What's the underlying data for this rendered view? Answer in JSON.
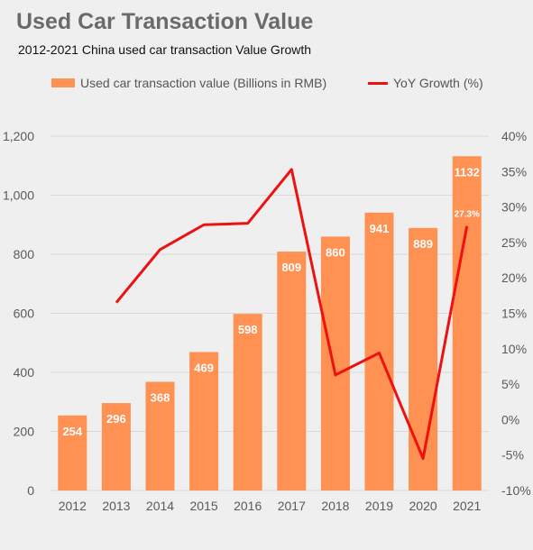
{
  "title": "Used Car Transaction Value",
  "subtitle": "2012-2021 China used car transaction Value Growth",
  "legend": {
    "bar_label": "Used car transaction value (Billions in RMB)",
    "line_label": "YoY Growth (%)"
  },
  "colors": {
    "bar": "#ff9152",
    "line": "#ee1111",
    "grid": "#d9d9d9"
  },
  "chart_data": {
    "type": "bar",
    "categories": [
      "2012",
      "2013",
      "2014",
      "2015",
      "2016",
      "2017",
      "2018",
      "2019",
      "2020",
      "2021"
    ],
    "series": [
      {
        "name": "Used car transaction value (Billions in RMB)",
        "type": "bar",
        "axis": "left",
        "values": [
          254,
          296,
          368,
          469,
          598,
          809,
          860,
          941,
          889,
          1132
        ]
      },
      {
        "name": "YoY Growth (%)",
        "type": "line",
        "axis": "right",
        "values": [
          null,
          16.5,
          24.0,
          27.5,
          27.7,
          35.3,
          6.3,
          9.4,
          -5.5,
          27.3
        ]
      }
    ],
    "ylim_left": [
      0,
      1200
    ],
    "yticks_left": [
      "0",
      "200",
      "400",
      "600",
      "800",
      "1,000",
      "1,200"
    ],
    "ylim_right": [
      -10,
      40
    ],
    "yticks_right": [
      "-10%",
      "-5%",
      "0%",
      "5%",
      "10%",
      "15%",
      "20%",
      "25%",
      "30%",
      "35%",
      "40%"
    ],
    "annotations": [
      {
        "category": "2021",
        "text": "27.3%"
      }
    ],
    "grid": true,
    "legend_position": "top"
  }
}
